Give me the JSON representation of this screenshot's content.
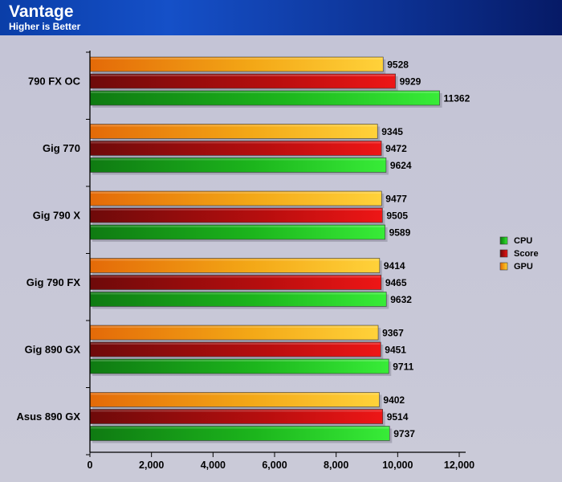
{
  "header": {
    "title": "Vantage",
    "subtitle": "Higher is Better"
  },
  "chart_data": {
    "type": "bar",
    "orientation": "horizontal",
    "title": "Vantage",
    "subtitle": "Higher is Better",
    "xlabel": "",
    "ylabel": "",
    "xlim": [
      0,
      12000
    ],
    "xticks": [
      0,
      2000,
      4000,
      6000,
      8000,
      10000,
      12000
    ],
    "xtick_labels": [
      "0",
      "2,000",
      "4,000",
      "6,000",
      "8,000",
      "10,000",
      "12,000"
    ],
    "grid": false,
    "legend_position": "right",
    "categories": [
      "790 FX OC",
      "Gig 770",
      "Gig 790 X",
      "Gig 790 FX",
      "Gig 890 GX",
      "Asus 890 GX"
    ],
    "series": [
      {
        "name": "GPU",
        "color": "#f5b91f",
        "values": [
          9528,
          9345,
          9477,
          9414,
          9367,
          9402
        ]
      },
      {
        "name": "Score",
        "color": "#cc1010",
        "values": [
          9929,
          9472,
          9505,
          9465,
          9451,
          9514
        ]
      },
      {
        "name": "CPU",
        "color": "#22c822",
        "values": [
          11362,
          9624,
          9589,
          9632,
          9711,
          9737
        ]
      }
    ],
    "legend": [
      "CPU",
      "Score",
      "GPU"
    ]
  }
}
